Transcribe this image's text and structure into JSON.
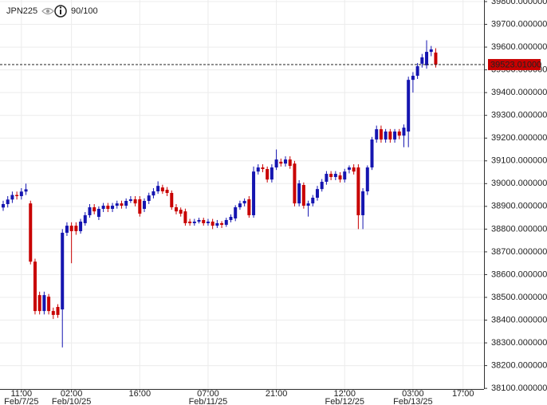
{
  "header": {
    "symbol": "JPN225",
    "score": "90/100"
  },
  "chart_data": {
    "type": "candlestick",
    "categories": [
      null,
      null,
      null,
      null,
      "11:00",
      null,
      null,
      null,
      null,
      null,
      null,
      null,
      null,
      null,
      null,
      "02:00",
      null,
      null,
      null,
      null,
      null,
      null,
      null,
      null,
      null,
      null,
      null,
      null,
      null,
      null,
      "16:00",
      null,
      null,
      null,
      null,
      null,
      null,
      null,
      null,
      null,
      null,
      null,
      null,
      null,
      null,
      "07:00",
      null,
      null,
      null,
      null,
      null,
      null,
      null,
      null,
      null,
      null,
      null,
      null,
      null,
      null,
      "21:00",
      null,
      null,
      null,
      null,
      null,
      null,
      null,
      null,
      null,
      null,
      null,
      null,
      null,
      null,
      "12:00",
      null,
      null,
      null,
      null,
      null,
      null,
      null,
      null,
      null,
      null,
      null,
      null,
      null,
      null,
      "03:00",
      null,
      null,
      null,
      null,
      null,
      null,
      null,
      null,
      null,
      null,
      "17:00"
    ],
    "dates": [
      null,
      null,
      null,
      null,
      "Feb/7/25",
      null,
      null,
      null,
      null,
      null,
      null,
      null,
      null,
      null,
      null,
      "Feb/10/25",
      null,
      null,
      null,
      null,
      null,
      null,
      null,
      null,
      null,
      null,
      null,
      null,
      null,
      null,
      null,
      null,
      null,
      null,
      null,
      null,
      null,
      null,
      null,
      null,
      null,
      null,
      null,
      null,
      null,
      "Feb/11/25",
      null,
      null,
      null,
      null,
      null,
      null,
      null,
      null,
      null,
      null,
      null,
      null,
      null,
      null,
      null,
      null,
      null,
      null,
      null,
      null,
      null,
      null,
      null,
      null,
      null,
      null,
      null,
      null,
      null,
      "Feb/12/25",
      null,
      null,
      null,
      null,
      null,
      null,
      null,
      null,
      null,
      null,
      null,
      null,
      null,
      null,
      "Feb/13/25",
      null,
      null,
      null,
      null,
      null,
      null,
      null,
      null,
      null,
      null,
      null
    ],
    "open": [
      38895,
      38910,
      38930,
      38950,
      38945,
      38965,
      38913,
      38657,
      38510,
      38440,
      38503,
      38440,
      38458,
      38447,
      38784,
      38815,
      38815,
      38791,
      38826,
      38861,
      38896,
      38854,
      38889,
      38903,
      38889,
      38903,
      38913,
      38903,
      38924,
      38931,
      38931,
      38889,
      38924,
      38948,
      38966,
      38983,
      38973,
      38959,
      38896,
      38885,
      38878,
      38833,
      38826,
      38833,
      38840,
      38826,
      38833,
      38815,
      38826,
      38819,
      38840,
      38847,
      38896,
      38913,
      38931,
      38861,
      39053,
      39071,
      39064,
      39018,
      39071,
      39096,
      39088,
      39106,
      39088,
      38913,
      38994,
      38903,
      38913,
      38938,
      38976,
      39008,
      39043,
      39029,
      39036,
      39018,
      39061,
      39071,
      39071,
      38861,
      38966,
      39071,
      39194,
      39239,
      39194,
      39229,
      39194,
      39229,
      39211,
      39229,
      39456,
      39474,
      39527,
      39520,
      39579,
      39576,
      null,
      null,
      null,
      null,
      null,
      null
    ],
    "high": [
      38925,
      38945,
      38965,
      38965,
      38980,
      39000,
      38925,
      38670,
      38525,
      38525,
      38515,
      38455,
      38470,
      38800,
      38830,
      38830,
      38830,
      38845,
      38875,
      38910,
      38910,
      38900,
      38915,
      38915,
      38915,
      38925,
      38925,
      38935,
      38945,
      38945,
      38945,
      38935,
      38960,
      38980,
      39010,
      38995,
      38985,
      38970,
      38910,
      38895,
      38890,
      38845,
      38845,
      38850,
      38850,
      38845,
      38845,
      38840,
      38835,
      38850,
      38865,
      38905,
      38925,
      38935,
      38945,
      39075,
      39085,
      39085,
      39075,
      39085,
      39150,
      39110,
      39120,
      39120,
      39100,
      39015,
      39005,
      38925,
      38950,
      38990,
      39020,
      39055,
      39055,
      39055,
      39050,
      39065,
      39080,
      39085,
      39085,
      38980,
      39080,
      39205,
      39255,
      39255,
      39240,
      39240,
      39240,
      39240,
      39260,
      39470,
      39490,
      39530,
      39570,
      39630,
      39605,
      39595,
      null,
      null,
      null,
      null,
      null,
      null
    ],
    "low": [
      38880,
      38895,
      38915,
      38930,
      38930,
      38950,
      38645,
      38425,
      38425,
      38425,
      38425,
      38405,
      38410,
      38280,
      38770,
      38650,
      38775,
      38780,
      38815,
      38850,
      38865,
      38840,
      38875,
      38875,
      38875,
      38890,
      38890,
      38890,
      38915,
      38900,
      38855,
      38875,
      38910,
      38935,
      38955,
      38955,
      38945,
      38885,
      38865,
      38855,
      38815,
      38815,
      38815,
      38825,
      38815,
      38815,
      38800,
      38805,
      38805,
      38810,
      38830,
      38835,
      38885,
      38900,
      38850,
      38850,
      39040,
      39050,
      39005,
      39005,
      39060,
      39075,
      39075,
      39065,
      38900,
      38900,
      38890,
      38855,
      38900,
      38925,
      38965,
      38995,
      39015,
      39015,
      39005,
      39005,
      39045,
      39040,
      38800,
      38800,
      38950,
      39060,
      39180,
      39180,
      39180,
      39180,
      39180,
      39195,
      39160,
      39160,
      39400,
      39460,
      39510,
      39505,
      39560,
      39510,
      null,
      null,
      null,
      null,
      null,
      null
    ],
    "close": [
      38910,
      38930,
      38950,
      38945,
      38965,
      38975,
      38657,
      38440,
      38440,
      38510,
      38440,
      38423,
      38423,
      38784,
      38815,
      38791,
      38791,
      38833,
      38861,
      38896,
      38878,
      38889,
      38903,
      38889,
      38903,
      38913,
      38903,
      38924,
      38931,
      38913,
      38868,
      38924,
      38948,
      38966,
      38990,
      38966,
      38959,
      38896,
      38878,
      38868,
      38826,
      38826,
      38833,
      38840,
      38826,
      38833,
      38815,
      38826,
      38819,
      38840,
      38854,
      38896,
      38913,
      38924,
      38861,
      39053,
      39071,
      39064,
      39018,
      39071,
      39106,
      39088,
      39106,
      39078,
      38913,
      39001,
      38903,
      38913,
      38938,
      38976,
      39008,
      39043,
      39029,
      39043,
      39018,
      39053,
      39071,
      39053,
      38861,
      38966,
      39071,
      39194,
      39239,
      39194,
      39229,
      39194,
      39229,
      39211,
      39246,
      39456,
      39474,
      39516,
      39555,
      39579,
      39590,
      39523.01,
      null,
      null,
      null,
      null,
      null,
      null
    ],
    "up_color": "#1515b0",
    "down_color": "#c80000",
    "ylim": [
      38097,
      39807
    ],
    "yticks": [
      {
        "value": 38100,
        "label": "38100.000000"
      },
      {
        "value": 38200,
        "label": "38200.000000"
      },
      {
        "value": 38300,
        "label": "38300.000000"
      },
      {
        "value": 38400,
        "label": "38400.000000"
      },
      {
        "value": 38500,
        "label": "38500.000000"
      },
      {
        "value": 38600,
        "label": "38600.000000"
      },
      {
        "value": 38700,
        "label": "38700.000000"
      },
      {
        "value": 38800,
        "label": "38800.000000"
      },
      {
        "value": 38900,
        "label": "38900.000000"
      },
      {
        "value": 39000,
        "label": "39000.000000"
      },
      {
        "value": 39100,
        "label": "39100.000000"
      },
      {
        "value": 39200,
        "label": "39200.000000"
      },
      {
        "value": 39300,
        "label": "39300.000000"
      },
      {
        "value": 39400,
        "label": "39400.000000"
      },
      {
        "value": 39500,
        "label": "39500.000000"
      },
      {
        "value": 39600,
        "label": "39600.000000"
      },
      {
        "value": 39700,
        "label": "39700.000000"
      },
      {
        "value": 39800,
        "label": "39800.000000"
      }
    ],
    "last_price": {
      "value": 39523.01,
      "label": "39523.01000"
    },
    "grid": true
  }
}
